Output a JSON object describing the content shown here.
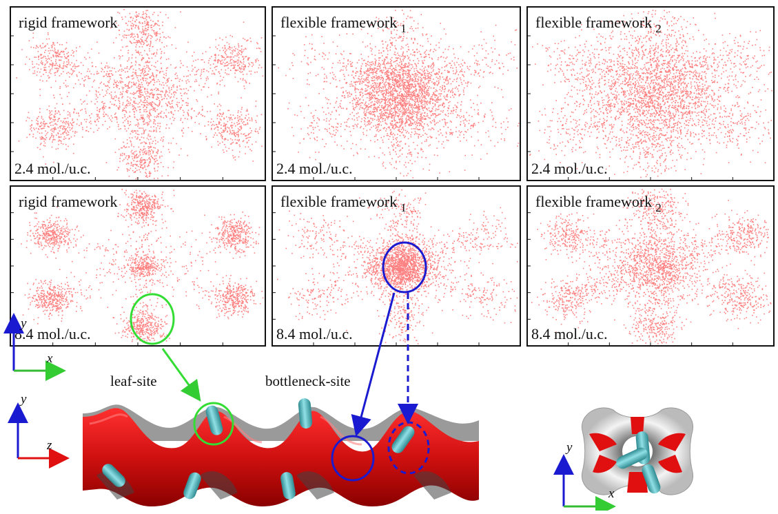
{
  "panels": [
    {
      "title": "rigid framework",
      "loading": "2.4 mol./u.c."
    },
    {
      "title": "flexible framework",
      "subscript": "1",
      "loading": "2.4 mol./u.c."
    },
    {
      "title": "flexible framework",
      "subscript": "2",
      "loading": "2.4 mol./u.c."
    },
    {
      "title": "rigid framework",
      "loading": "8.4 mol./u.c."
    },
    {
      "title": "flexible framework",
      "subscript": "1",
      "loading": "8.4 mol./u.c."
    },
    {
      "title": "flexible framework",
      "subscript": "2",
      "loading": "8.4 mol./u.c."
    }
  ],
  "labels": {
    "leaf_site": "leaf-site",
    "bottleneck_site": "bottleneck-site"
  },
  "axes": [
    {
      "vertical": "y",
      "horizontal": "x"
    },
    {
      "vertical": "y",
      "horizontal": "z"
    },
    {
      "vertical": "y",
      "horizontal": "x"
    }
  ]
}
